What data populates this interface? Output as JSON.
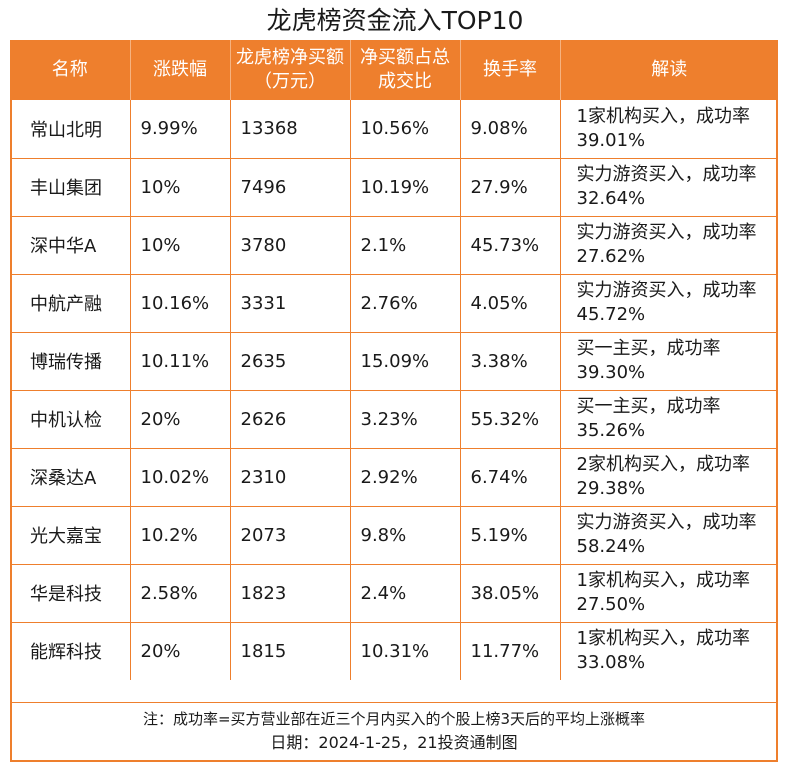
{
  "title": "龙虎榜资金流入TOP10",
  "headers": [
    "名称",
    "涨跌幅",
    "龙虎榜净买额（万元）",
    "净买额占总成交比",
    "换手率",
    "解读"
  ],
  "rows": [
    [
      "常山北明",
      "9.99%",
      "13368",
      "10.56%",
      "9.08%",
      "1家机构买入，成功率39.01%"
    ],
    [
      "丰山集团",
      "10%",
      "7496",
      "10.19%",
      "27.9%",
      "实力游资买入，成功率32.64%"
    ],
    [
      "深中华A",
      "10%",
      "3780",
      "2.1%",
      "45.73%",
      "实力游资买入，成功率27.62%"
    ],
    [
      "中航产融",
      "10.16%",
      "3331",
      "2.76%",
      "4.05%",
      "实力游资买入，成功率45.72%"
    ],
    [
      "博瑞传播",
      "10.11%",
      "2635",
      "15.09%",
      "3.38%",
      "买一主买，成功率39.30%"
    ],
    [
      "中机认检",
      "20%",
      "2626",
      "3.23%",
      "55.32%",
      "买一主买，成功率35.26%"
    ],
    [
      "深桑达A",
      "10.02%",
      "2310",
      "2.92%",
      "6.74%",
      "2家机构买入，成功率29.38%"
    ],
    [
      "光大嘉宝",
      "10.2%",
      "2073",
      "9.8%",
      "5.19%",
      "实力游资买入，成功率58.24%"
    ],
    [
      "华是科技",
      "2.58%",
      "1823",
      "2.4%",
      "38.05%",
      "1家机构买入，成功率27.50%"
    ],
    [
      "能辉科技",
      "20%",
      "1815",
      "10.31%",
      "11.77%",
      "1家机构买入，成功率33.08%"
    ]
  ],
  "note": "注：成功率=买方营业部在近三个月内买入的个股上榜3天后的平均上涨概率",
  "date_line": "日期：2024-1-25，21投资通制图"
}
